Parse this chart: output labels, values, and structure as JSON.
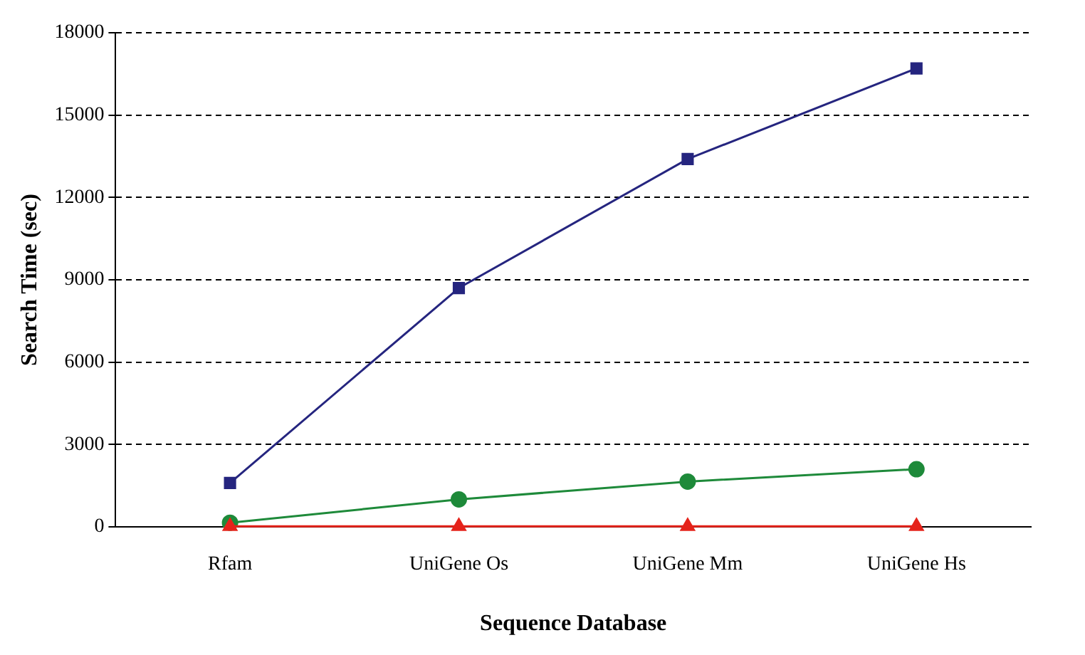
{
  "chart_data": {
    "type": "line",
    "xlabel": "Sequence Database",
    "ylabel": "Search Time (sec)",
    "categories": [
      "Rfam",
      "UniGene Os",
      "UniGene Mm",
      "UniGene Hs"
    ],
    "series": [
      {
        "color": "#25257f",
        "marker": "square",
        "values": [
          1600,
          8700,
          13400,
          16700
        ]
      },
      {
        "color": "#1e8a3a",
        "marker": "circle",
        "values": [
          150,
          1000,
          1650,
          2100
        ]
      },
      {
        "color": "#e5231b",
        "marker": "triangle",
        "values": [
          20,
          20,
          20,
          20
        ]
      }
    ],
    "ylim": [
      0,
      18000
    ],
    "yticks": [
      0,
      3000,
      6000,
      9000,
      12000,
      15000,
      18000
    ],
    "grid": "y",
    "line_style": "solid"
  }
}
